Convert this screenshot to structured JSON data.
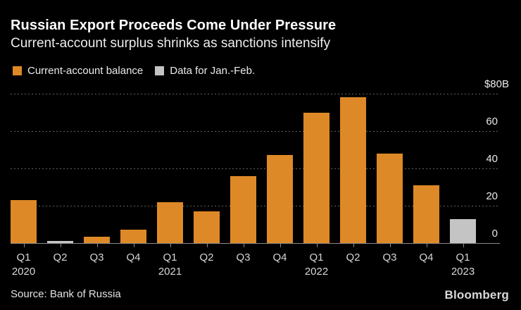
{
  "header": {
    "title": "Russian Export Proceeds Come Under Pressure",
    "subtitle": "Current-account surplus shrinks as sanctions intensify"
  },
  "legend": [
    {
      "label": "Current-account balance",
      "color": "#DE8927"
    },
    {
      "label": "Data for Jan.-Feb.",
      "color": "#C4C4C4"
    }
  ],
  "chart_data": {
    "type": "bar",
    "title": "Russian Export Proceeds Come Under Pressure",
    "subtitle": "Current-account surplus shrinks as sanctions intensify",
    "unit": "billion USD",
    "ylim": [
      0,
      80
    ],
    "grid": "horizontal-dotted",
    "legend_position": "top-left",
    "yticks": [
      {
        "value": 0,
        "label": "0"
      },
      {
        "value": 20,
        "label": "20"
      },
      {
        "value": 40,
        "label": "40"
      },
      {
        "value": 60,
        "label": "60"
      },
      {
        "value": 80,
        "label": "$80B"
      }
    ],
    "colors": {
      "orange": "#DE8927",
      "gray": "#C4C4C4"
    },
    "bars": [
      {
        "quarter": "Q1",
        "year": "2020",
        "value": 23,
        "color": "orange"
      },
      {
        "quarter": "Q2",
        "year": "2020",
        "value": 1,
        "color": "gray"
      },
      {
        "quarter": "Q3",
        "year": "2020",
        "value": 3.5,
        "color": "orange"
      },
      {
        "quarter": "Q4",
        "year": "2020",
        "value": 7,
        "color": "orange"
      },
      {
        "quarter": "Q1",
        "year": "2021",
        "value": 22,
        "color": "orange"
      },
      {
        "quarter": "Q2",
        "year": "2021",
        "value": 17,
        "color": "orange"
      },
      {
        "quarter": "Q3",
        "year": "2021",
        "value": 36,
        "color": "orange"
      },
      {
        "quarter": "Q4",
        "year": "2021",
        "value": 47,
        "color": "orange"
      },
      {
        "quarter": "Q1",
        "year": "2022",
        "value": 70,
        "color": "orange"
      },
      {
        "quarter": "Q2",
        "year": "2022",
        "value": 78,
        "color": "orange"
      },
      {
        "quarter": "Q3",
        "year": "2022",
        "value": 48,
        "color": "orange"
      },
      {
        "quarter": "Q4",
        "year": "2022",
        "value": 31,
        "color": "orange"
      },
      {
        "quarter": "Q1",
        "year": "2023",
        "value": 13,
        "color": "gray"
      }
    ],
    "year_marks": [
      {
        "index": 0,
        "year": "2020"
      },
      {
        "index": 4,
        "year": "2021"
      },
      {
        "index": 8,
        "year": "2022"
      },
      {
        "index": 12,
        "year": "2023"
      }
    ]
  },
  "footer": {
    "source": "Source: Bank of Russia",
    "brand": "Bloomberg"
  }
}
